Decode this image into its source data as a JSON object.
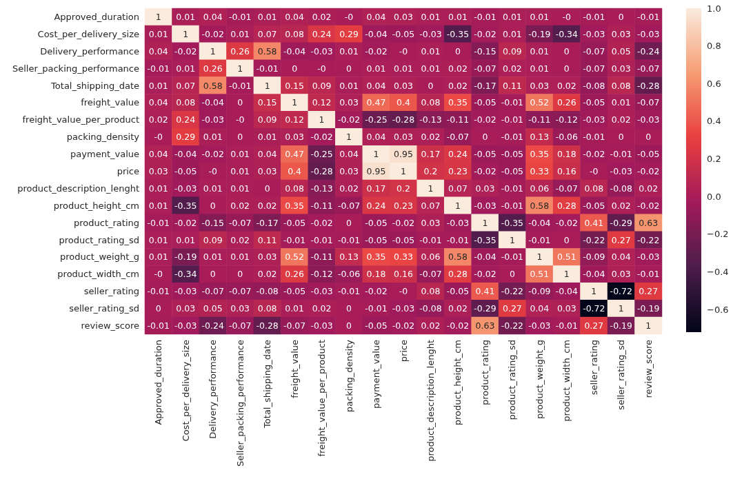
{
  "chart_data": {
    "type": "heatmap",
    "categories": [
      "Approved_duration",
      "Cost_per_delivery_size",
      "Delivery_performance",
      "Seller_packing_performance",
      "Total_shipping_date",
      "freight_value",
      "freight_value_per_product",
      "packing_density",
      "payment_value",
      "price",
      "product_description_lenght",
      "product_height_cm",
      "product_rating",
      "product_rating_sd",
      "product_weight_g",
      "product_width_cm",
      "seller_rating",
      "seller_rating_sd",
      "review_score"
    ],
    "y_categories": [
      "Approved_duration",
      "Cost_per_delivery_size",
      "Delivery_performance",
      "Seller_packing_performance",
      "Total_shipping_date",
      "freight_value",
      "freight_value_per_product",
      "packing_density",
      "payment_value",
      "price",
      "product_description_lenght",
      "product_height_cm",
      "product_rating",
      "product_rating_sd",
      "product_weight_g",
      "product_width_cm",
      "seller_rating",
      "seller_rating_sd",
      "review_score"
    ],
    "cells": [
      [
        1,
        0.01,
        0.04,
        -0.01,
        0.01,
        0.04,
        0.02,
        0,
        0.04,
        0.03,
        0.01,
        0.01,
        -0.01,
        0.01,
        0.01,
        0,
        -0.01,
        0,
        -0.01
      ],
      [
        0.01,
        1,
        -0.02,
        0.01,
        0.07,
        0.08,
        0.24,
        0.29,
        -0.04,
        -0.05,
        -0.03,
        -0.35,
        -0.02,
        0.01,
        -0.19,
        -0.34,
        -0.03,
        0.03,
        -0.03
      ],
      [
        0.04,
        -0.02,
        1,
        0.26,
        0.58,
        -0.04,
        -0.03,
        0.01,
        -0.02,
        0,
        0.01,
        0,
        -0.15,
        0.09,
        0.01,
        0,
        -0.07,
        0.05,
        -0.24
      ],
      [
        -0.01,
        0.01,
        0.26,
        1,
        -0.01,
        0,
        0,
        0,
        0.01,
        0.01,
        0.01,
        0.02,
        -0.07,
        0.02,
        0.01,
        0,
        -0.07,
        0.03,
        -0.07
      ],
      [
        0.01,
        0.07,
        0.58,
        -0.01,
        1,
        0.15,
        0.09,
        0.01,
        0.04,
        0.03,
        0,
        0.02,
        -0.17,
        0.11,
        0.03,
        0.02,
        -0.08,
        0.08,
        -0.28
      ],
      [
        0.04,
        0.08,
        -0.04,
        0,
        0.15,
        1,
        0.12,
        0.03,
        0.47,
        0.4,
        0.08,
        0.35,
        -0.05,
        -0.01,
        0.52,
        0.26,
        -0.05,
        0.01,
        -0.07
      ],
      [
        0.02,
        0.24,
        -0.03,
        0,
        0.09,
        0.12,
        1,
        -0.02,
        -0.25,
        -0.28,
        -0.13,
        -0.11,
        -0.02,
        -0.01,
        -0.11,
        -0.12,
        -0.03,
        0.02,
        -0.03
      ],
      [
        0,
        0.29,
        0.01,
        0,
        0.01,
        0.03,
        -0.02,
        1,
        0.04,
        0.03,
        0.02,
        -0.07,
        0,
        -0.01,
        0.13,
        -0.06,
        -0.01,
        0,
        0
      ],
      [
        0.04,
        -0.04,
        -0.02,
        0.01,
        0.04,
        0.47,
        -0.25,
        0.04,
        1,
        0.95,
        0.17,
        0.24,
        -0.05,
        -0.05,
        0.35,
        0.18,
        -0.02,
        -0.01,
        -0.05
      ],
      [
        0.03,
        -0.05,
        0,
        0.01,
        0.03,
        0.4,
        -0.28,
        0.03,
        0.95,
        1,
        0.2,
        0.23,
        -0.02,
        -0.05,
        0.33,
        0.16,
        0,
        -0.03,
        -0.02
      ],
      [
        0.01,
        -0.03,
        0.01,
        0.01,
        0,
        0.08,
        -0.13,
        0.02,
        0.17,
        0.2,
        1,
        0.07,
        0.03,
        -0.01,
        0.06,
        -0.07,
        0.08,
        -0.08,
        0.02
      ],
      [
        0.01,
        -0.35,
        0,
        0.02,
        0.02,
        0.35,
        -0.11,
        -0.07,
        0.24,
        0.23,
        0.07,
        1,
        -0.03,
        -0.01,
        0.58,
        0.28,
        -0.05,
        0.02,
        -0.02
      ],
      [
        -0.01,
        -0.02,
        -0.15,
        -0.07,
        -0.17,
        -0.05,
        -0.02,
        0,
        -0.05,
        -0.02,
        0.03,
        -0.03,
        1,
        -0.35,
        -0.04,
        -0.02,
        0.41,
        -0.29,
        0.63
      ],
      [
        0.01,
        0.01,
        0.09,
        0.02,
        0.11,
        -0.01,
        -0.01,
        -0.01,
        -0.05,
        -0.05,
        -0.01,
        -0.01,
        -0.35,
        1,
        -0.01,
        0,
        -0.22,
        0.27,
        -0.22
      ],
      [
        0.01,
        -0.19,
        0.01,
        0.01,
        0.03,
        0.52,
        -0.11,
        0.13,
        0.35,
        0.33,
        0.06,
        0.58,
        -0.04,
        -0.01,
        1,
        0.51,
        -0.09,
        0.04,
        -0.03
      ],
      [
        0,
        -0.34,
        0,
        0,
        0.02,
        0.26,
        -0.12,
        -0.06,
        0.18,
        0.16,
        -0.07,
        0.28,
        -0.02,
        0,
        0.51,
        1,
        -0.04,
        0.03,
        -0.01
      ],
      [
        -0.01,
        -0.03,
        -0.07,
        -0.07,
        -0.08,
        -0.05,
        -0.03,
        -0.01,
        -0.02,
        0,
        0.08,
        -0.05,
        0.41,
        -0.22,
        -0.09,
        -0.04,
        1,
        -0.72,
        0.27
      ],
      [
        0,
        0.03,
        0.05,
        0.03,
        0.08,
        0.01,
        0.02,
        0,
        -0.01,
        -0.03,
        -0.08,
        0.02,
        -0.29,
        0.27,
        0.04,
        0.03,
        -0.72,
        1,
        -0.19
      ],
      [
        -0.01,
        -0.03,
        -0.24,
        -0.07,
        -0.28,
        -0.07,
        -0.03,
        0,
        -0.05,
        -0.02,
        0.02,
        -0.02,
        0.63,
        -0.22,
        -0.03,
        -0.01,
        0.27,
        -0.19,
        1
      ]
    ],
    "cell_labels": [
      [
        "1",
        "0.01",
        "0.04",
        "-0.01",
        "0.01",
        "0.04",
        "0.02",
        "-0",
        "0.04",
        "0.03",
        "0.01",
        "0.01",
        "-0.01",
        "0.01",
        "0.01",
        "-0",
        "-0.01",
        "0",
        "-0.01"
      ],
      [
        "0.01",
        "1",
        "-0.02",
        "0.01",
        "0.07",
        "0.08",
        "0.24",
        "0.29",
        "-0.04",
        "-0.05",
        "-0.03",
        "-0.35",
        "-0.02",
        "0.01",
        "-0.19",
        "-0.34",
        "-0.03",
        "0.03",
        "-0.03"
      ],
      [
        "0.04",
        "-0.02",
        "1",
        "0.26",
        "0.58",
        "-0.04",
        "-0.03",
        "0.01",
        "-0.02",
        "-0",
        "0.01",
        "0",
        "-0.15",
        "0.09",
        "0.01",
        "0",
        "-0.07",
        "0.05",
        "-0.24"
      ],
      [
        "-0.01",
        "0.01",
        "0.26",
        "1",
        "-0.01",
        "0",
        "-0",
        "0",
        "0.01",
        "0.01",
        "0.01",
        "0.02",
        "-0.07",
        "0.02",
        "0.01",
        "0",
        "-0.07",
        "0.03",
        "-0.07"
      ],
      [
        "0.01",
        "0.07",
        "0.58",
        "-0.01",
        "1",
        "0.15",
        "0.09",
        "0.01",
        "0.04",
        "0.03",
        "0",
        "0.02",
        "-0.17",
        "0.11",
        "0.03",
        "0.02",
        "-0.08",
        "0.08",
        "-0.28"
      ],
      [
        "0.04",
        "0.08",
        "-0.04",
        "0",
        "0.15",
        "1",
        "0.12",
        "0.03",
        "0.47",
        "0.4",
        "0.08",
        "0.35",
        "-0.05",
        "-0.01",
        "0.52",
        "0.26",
        "-0.05",
        "0.01",
        "-0.07"
      ],
      [
        "0.02",
        "0.24",
        "-0.03",
        "-0",
        "0.09",
        "0.12",
        "1",
        "-0.02",
        "-0.25",
        "-0.28",
        "-0.13",
        "-0.11",
        "-0.02",
        "-0.01",
        "-0.11",
        "-0.12",
        "-0.03",
        "0.02",
        "-0.03"
      ],
      [
        "-0",
        "0.29",
        "0.01",
        "0",
        "0.01",
        "0.03",
        "-0.02",
        "1",
        "0.04",
        "0.03",
        "0.02",
        "-0.07",
        "0",
        "-0.01",
        "0.13",
        "-0.06",
        "-0.01",
        "0",
        "0"
      ],
      [
        "0.04",
        "-0.04",
        "-0.02",
        "0.01",
        "0.04",
        "0.47",
        "-0.25",
        "0.04",
        "1",
        "0.95",
        "0.17",
        "0.24",
        "-0.05",
        "-0.05",
        "0.35",
        "0.18",
        "-0.02",
        "-0.01",
        "-0.05"
      ],
      [
        "0.03",
        "-0.05",
        "-0",
        "0.01",
        "0.03",
        "0.4",
        "-0.28",
        "0.03",
        "0.95",
        "1",
        "0.2",
        "0.23",
        "-0.02",
        "-0.05",
        "0.33",
        "0.16",
        "-0",
        "-0.03",
        "-0.02"
      ],
      [
        "0.01",
        "-0.03",
        "0.01",
        "0.01",
        "0",
        "0.08",
        "-0.13",
        "0.02",
        "0.17",
        "0.2",
        "1",
        "0.07",
        "0.03",
        "-0.01",
        "0.06",
        "-0.07",
        "0.08",
        "-0.08",
        "0.02"
      ],
      [
        "0.01",
        "-0.35",
        "0",
        "0.02",
        "0.02",
        "0.35",
        "-0.11",
        "-0.07",
        "0.24",
        "0.23",
        "0.07",
        "1",
        "-0.03",
        "-0.01",
        "0.58",
        "0.28",
        "-0.05",
        "0.02",
        "-0.02"
      ],
      [
        "-0.01",
        "-0.02",
        "-0.15",
        "-0.07",
        "-0.17",
        "-0.05",
        "-0.02",
        "0",
        "-0.05",
        "-0.02",
        "0.03",
        "-0.03",
        "1",
        "-0.35",
        "-0.04",
        "-0.02",
        "0.41",
        "-0.29",
        "0.63"
      ],
      [
        "0.01",
        "0.01",
        "0.09",
        "0.02",
        "0.11",
        "-0.01",
        "-0.01",
        "-0.01",
        "-0.05",
        "-0.05",
        "-0.01",
        "-0.01",
        "-0.35",
        "1",
        "-0.01",
        "0",
        "-0.22",
        "0.27",
        "-0.22"
      ],
      [
        "0.01",
        "-0.19",
        "0.01",
        "0.01",
        "0.03",
        "0.52",
        "-0.11",
        "0.13",
        "0.35",
        "0.33",
        "0.06",
        "0.58",
        "-0.04",
        "-0.01",
        "1",
        "0.51",
        "-0.09",
        "0.04",
        "-0.03"
      ],
      [
        "-0",
        "-0.34",
        "0",
        "0",
        "0.02",
        "0.26",
        "-0.12",
        "-0.06",
        "0.18",
        "0.16",
        "-0.07",
        "0.28",
        "-0.02",
        "0",
        "0.51",
        "1",
        "-0.04",
        "0.03",
        "-0.01"
      ],
      [
        "-0.01",
        "-0.03",
        "-0.07",
        "-0.07",
        "-0.08",
        "-0.05",
        "-0.03",
        "-0.01",
        "-0.02",
        "-0",
        "0.08",
        "-0.05",
        "0.41",
        "-0.22",
        "-0.09",
        "-0.04",
        "1",
        "-0.72",
        "0.27"
      ],
      [
        "0",
        "0.03",
        "0.05",
        "0.03",
        "0.08",
        "0.01",
        "0.02",
        "0",
        "-0.01",
        "-0.03",
        "-0.08",
        "0.02",
        "-0.29",
        "0.27",
        "0.04",
        "0.03",
        "-0.72",
        "1",
        "-0.19"
      ],
      [
        "-0.01",
        "-0.03",
        "-0.24",
        "-0.07",
        "-0.28",
        "-0.07",
        "-0.03",
        "0",
        "-0.05",
        "-0.02",
        "0.02",
        "-0.02",
        "0.63",
        "-0.22",
        "-0.03",
        "-0.01",
        "0.27",
        "-0.19",
        "1"
      ]
    ],
    "clim": [
      -0.72,
      1
    ],
    "cticks": [
      {
        "value": -0.6,
        "label": "−0.6"
      },
      {
        "value": -0.4,
        "label": "−0.4"
      },
      {
        "value": -0.2,
        "label": "−0.2"
      },
      {
        "value": 0,
        "label": "0.0"
      },
      {
        "value": 0.2,
        "label": "0.2"
      },
      {
        "value": 0.4,
        "label": "0.4"
      },
      {
        "value": 0.6,
        "label": "0.6"
      },
      {
        "value": 0.8,
        "label": "0.8"
      },
      {
        "value": 1,
        "label": "1.0"
      }
    ],
    "data_labels": true
  }
}
